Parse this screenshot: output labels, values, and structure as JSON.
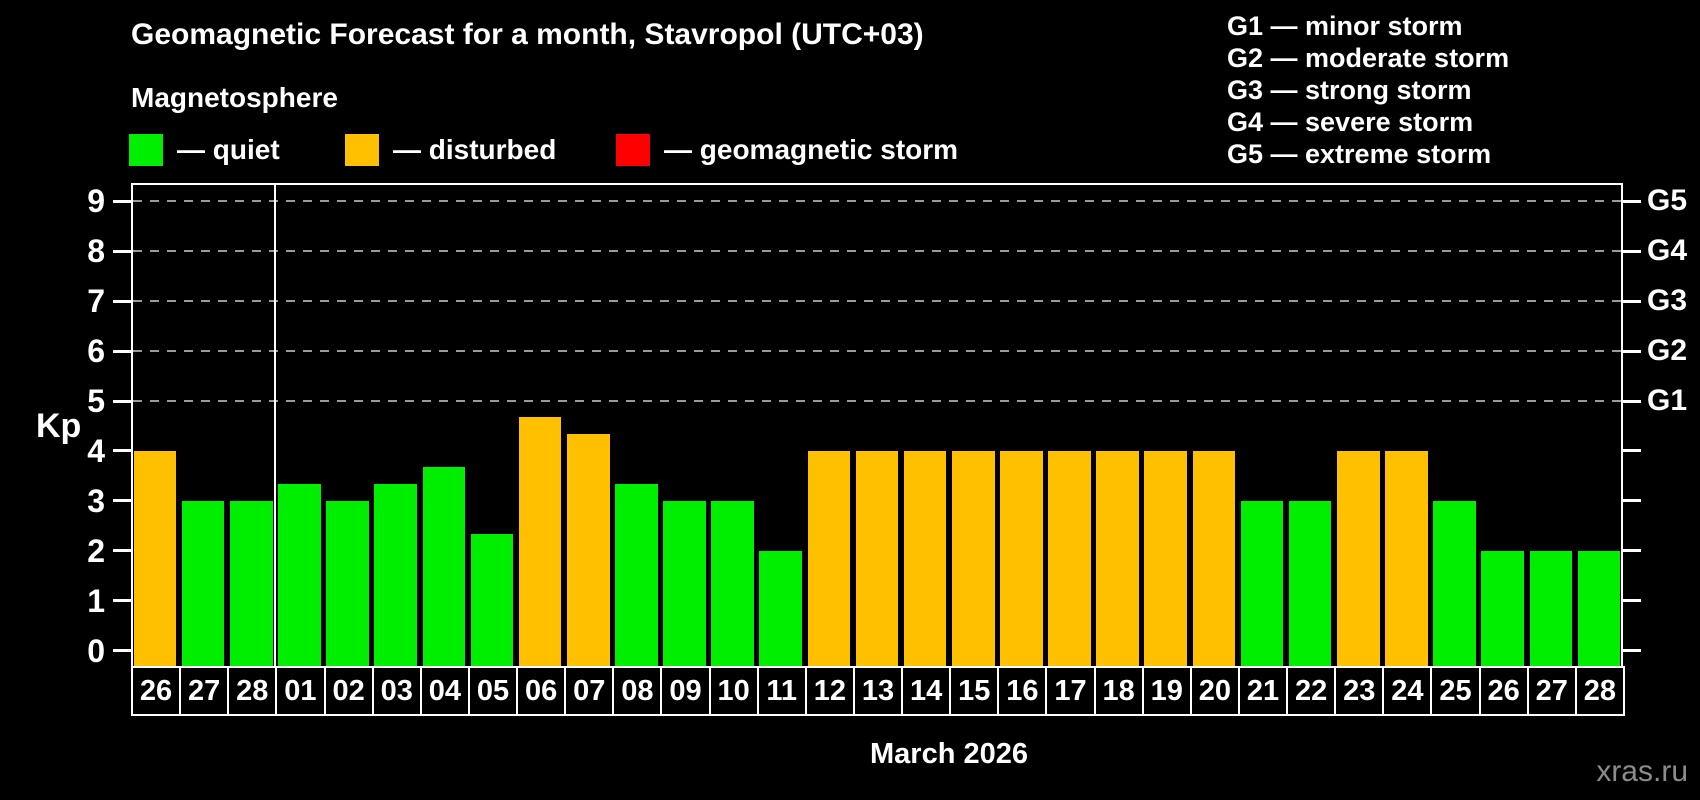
{
  "header": {
    "title": "Geomagnetic Forecast for a month, Stavropol (UTC+03)",
    "subtitle": "Magnetosphere",
    "watermark": "xras.ru"
  },
  "legend": {
    "items": [
      {
        "label": "— quiet",
        "status": "quiet",
        "color": "#00EE00"
      },
      {
        "label": "— disturbed",
        "status": "disturbed",
        "color": "#FFC000"
      },
      {
        "label": "— geomagnetic storm",
        "status": "storm",
        "color": "#FF0000"
      }
    ]
  },
  "storm_scale_legend": {
    "items": [
      "G1 — minor storm",
      "G2 — moderate storm",
      "G3 — strong storm",
      "G4 — severe storm",
      "G5 — extreme storm"
    ]
  },
  "chart_data": {
    "type": "bar",
    "title": "Geomagnetic Forecast for a month, Stavropol (UTC+03)",
    "ylabel": "Kp",
    "xlabel": "March 2026",
    "ylim": [
      0,
      9
    ],
    "yticks": [
      0,
      1,
      2,
      3,
      4,
      5,
      6,
      7,
      8,
      9
    ],
    "gridlines": [
      5,
      6,
      7,
      8,
      9
    ],
    "grid_style": "dashed",
    "legend_position": "top-left",
    "right_axis_labels": [
      {
        "value": 5,
        "label": "G1"
      },
      {
        "value": 6,
        "label": "G2"
      },
      {
        "value": 7,
        "label": "G3"
      },
      {
        "value": 8,
        "label": "G4"
      },
      {
        "value": 9,
        "label": "G5"
      }
    ],
    "status_colors": {
      "quiet": "#00EE00",
      "disturbed": "#FFC000",
      "storm": "#FF0000"
    },
    "month_separator_index": 3,
    "categories": [
      "26",
      "27",
      "28",
      "01",
      "02",
      "03",
      "04",
      "05",
      "06",
      "07",
      "08",
      "09",
      "10",
      "11",
      "12",
      "13",
      "14",
      "15",
      "16",
      "17",
      "18",
      "19",
      "20",
      "21",
      "22",
      "23",
      "24",
      "25",
      "26",
      "27",
      "28"
    ],
    "bars": [
      {
        "day": "26",
        "kp": 4.0,
        "status": "disturbed"
      },
      {
        "day": "27",
        "kp": 3.0,
        "status": "quiet"
      },
      {
        "day": "28",
        "kp": 3.0,
        "status": "quiet"
      },
      {
        "day": "01",
        "kp": 3.33,
        "status": "quiet"
      },
      {
        "day": "02",
        "kp": 3.0,
        "status": "quiet"
      },
      {
        "day": "03",
        "kp": 3.33,
        "status": "quiet"
      },
      {
        "day": "04",
        "kp": 3.67,
        "status": "quiet"
      },
      {
        "day": "05",
        "kp": 2.33,
        "status": "quiet"
      },
      {
        "day": "06",
        "kp": 4.67,
        "status": "disturbed"
      },
      {
        "day": "07",
        "kp": 4.33,
        "status": "disturbed"
      },
      {
        "day": "08",
        "kp": 3.33,
        "status": "quiet"
      },
      {
        "day": "09",
        "kp": 3.0,
        "status": "quiet"
      },
      {
        "day": "10",
        "kp": 3.0,
        "status": "quiet"
      },
      {
        "day": "11",
        "kp": 2.0,
        "status": "quiet"
      },
      {
        "day": "12",
        "kp": 4.0,
        "status": "disturbed"
      },
      {
        "day": "13",
        "kp": 4.0,
        "status": "disturbed"
      },
      {
        "day": "14",
        "kp": 4.0,
        "status": "disturbed"
      },
      {
        "day": "15",
        "kp": 4.0,
        "status": "disturbed"
      },
      {
        "day": "16",
        "kp": 4.0,
        "status": "disturbed"
      },
      {
        "day": "17",
        "kp": 4.0,
        "status": "disturbed"
      },
      {
        "day": "18",
        "kp": 4.0,
        "status": "disturbed"
      },
      {
        "day": "19",
        "kp": 4.0,
        "status": "disturbed"
      },
      {
        "day": "20",
        "kp": 4.0,
        "status": "disturbed"
      },
      {
        "day": "21",
        "kp": 3.0,
        "status": "quiet"
      },
      {
        "day": "22",
        "kp": 3.0,
        "status": "quiet"
      },
      {
        "day": "23",
        "kp": 4.0,
        "status": "disturbed"
      },
      {
        "day": "24",
        "kp": 4.0,
        "status": "disturbed"
      },
      {
        "day": "25",
        "kp": 3.0,
        "status": "quiet"
      },
      {
        "day": "26",
        "kp": 2.0,
        "status": "quiet"
      },
      {
        "day": "27",
        "kp": 2.0,
        "status": "quiet"
      },
      {
        "day": "28",
        "kp": 2.0,
        "status": "quiet"
      }
    ]
  }
}
